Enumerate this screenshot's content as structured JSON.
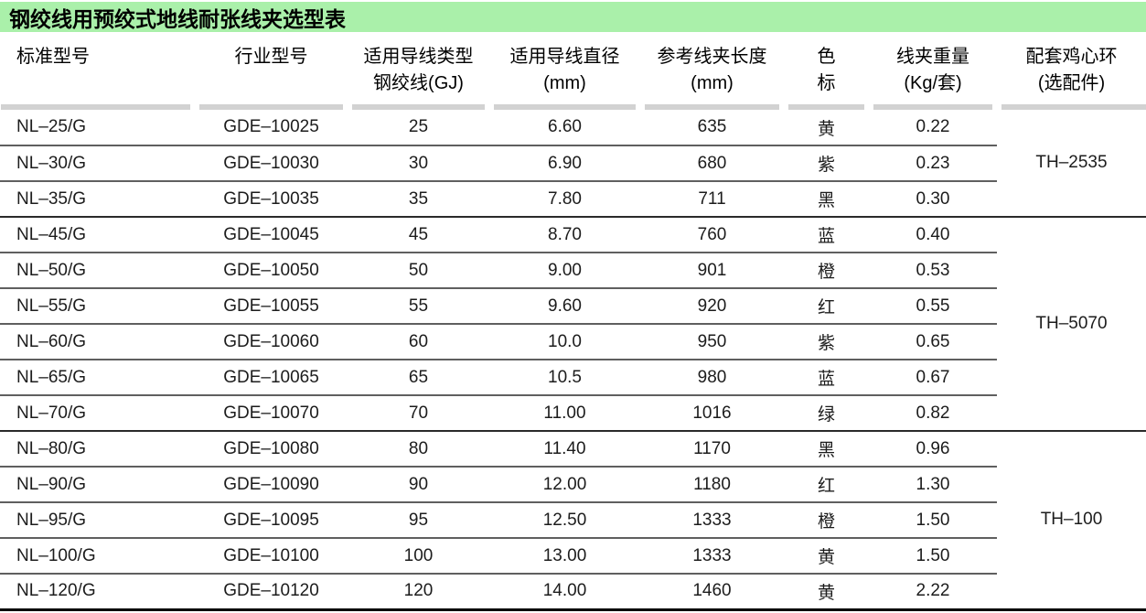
{
  "title": "钢绞线用预绞式地线耐张线夹选型表",
  "colors": {
    "title_bg": "#aaf0aa",
    "band": "#d2d2d2",
    "row_line": "#5f5f5f",
    "group_line": "#2a2a2a",
    "bottom_line": "#000000",
    "text": "#1c1c1c"
  },
  "table": {
    "columns": [
      {
        "line1": "标准型号",
        "line2": ""
      },
      {
        "line1": "行业型号",
        "line2": ""
      },
      {
        "line1": "适用导线类型",
        "line2": "钢绞线(GJ)"
      },
      {
        "line1": "适用导线直径",
        "line2": "(mm)"
      },
      {
        "line1": "参考线夹长度",
        "line2": "(mm)"
      },
      {
        "line1": "色",
        "line2": "标"
      },
      {
        "line1": "线夹重量",
        "line2": "(Kg/套)"
      },
      {
        "line1": "配套鸡心环",
        "line2": "(选配件)"
      }
    ],
    "groups": [
      {
        "ring": "TH–2535",
        "rows": [
          [
            "NL–25/G",
            "GDE–10025",
            "25",
            "6.60",
            "635",
            "黄",
            "0.22"
          ],
          [
            "NL–30/G",
            "GDE–10030",
            "30",
            "6.90",
            "680",
            "紫",
            "0.23"
          ],
          [
            "NL–35/G",
            "GDE–10035",
            "35",
            "7.80",
            "711",
            "黑",
            "0.30"
          ]
        ]
      },
      {
        "ring": "TH–5070",
        "rows": [
          [
            "NL–45/G",
            "GDE–10045",
            "45",
            "8.70",
            "760",
            "蓝",
            "0.40"
          ],
          [
            "NL–50/G",
            "GDE–10050",
            "50",
            "9.00",
            "901",
            "橙",
            "0.53"
          ],
          [
            "NL–55/G",
            "GDE–10055",
            "55",
            "9.60",
            "920",
            "红",
            "0.55"
          ],
          [
            "NL–60/G",
            "GDE–10060",
            "60",
            "10.0",
            "950",
            "紫",
            "0.65"
          ],
          [
            "NL–65/G",
            "GDE–10065",
            "65",
            "10.5",
            "980",
            "蓝",
            "0.67"
          ],
          [
            "NL–70/G",
            "GDE–10070",
            "70",
            "11.00",
            "1016",
            "绿",
            "0.82"
          ]
        ]
      },
      {
        "ring": "TH–100",
        "rows": [
          [
            "NL–80/G",
            "GDE–10080",
            "80",
            "11.40",
            "1170",
            "黑",
            "0.96"
          ],
          [
            "NL–90/G",
            "GDE–10090",
            "90",
            "12.00",
            "1180",
            "红",
            "1.30"
          ],
          [
            "NL–95/G",
            "GDE–10095",
            "95",
            "12.50",
            "1333",
            "橙",
            "1.50"
          ],
          [
            "NL–100/G",
            "GDE–10100",
            "100",
            "13.00",
            "1333",
            "黄",
            "1.50"
          ],
          [
            "NL–120/G",
            "GDE–10120",
            "120",
            "14.00",
            "1460",
            "黄",
            "2.22"
          ]
        ]
      }
    ]
  }
}
